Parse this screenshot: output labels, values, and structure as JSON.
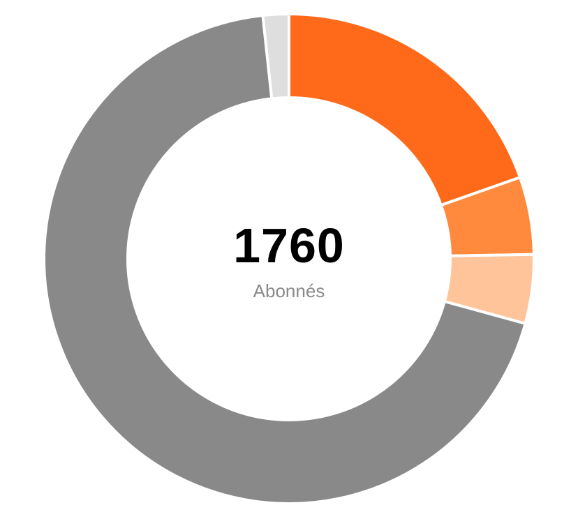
{
  "center": {
    "total": "1760",
    "label": "Abonnés"
  },
  "chart_data": {
    "type": "pie",
    "donut": true,
    "total": 1760,
    "slices": [
      {
        "value": 345,
        "color": "#ff6a1a"
      },
      {
        "value": 90,
        "color": "#ff8a3d"
      },
      {
        "value": 80,
        "color": "#ffc49a"
      },
      {
        "value": 1215,
        "color": "#898989"
      },
      {
        "value": 30,
        "color": "#dedede"
      }
    ],
    "start_angle_deg": 0,
    "direction": "clockwise",
    "legend": "none"
  }
}
